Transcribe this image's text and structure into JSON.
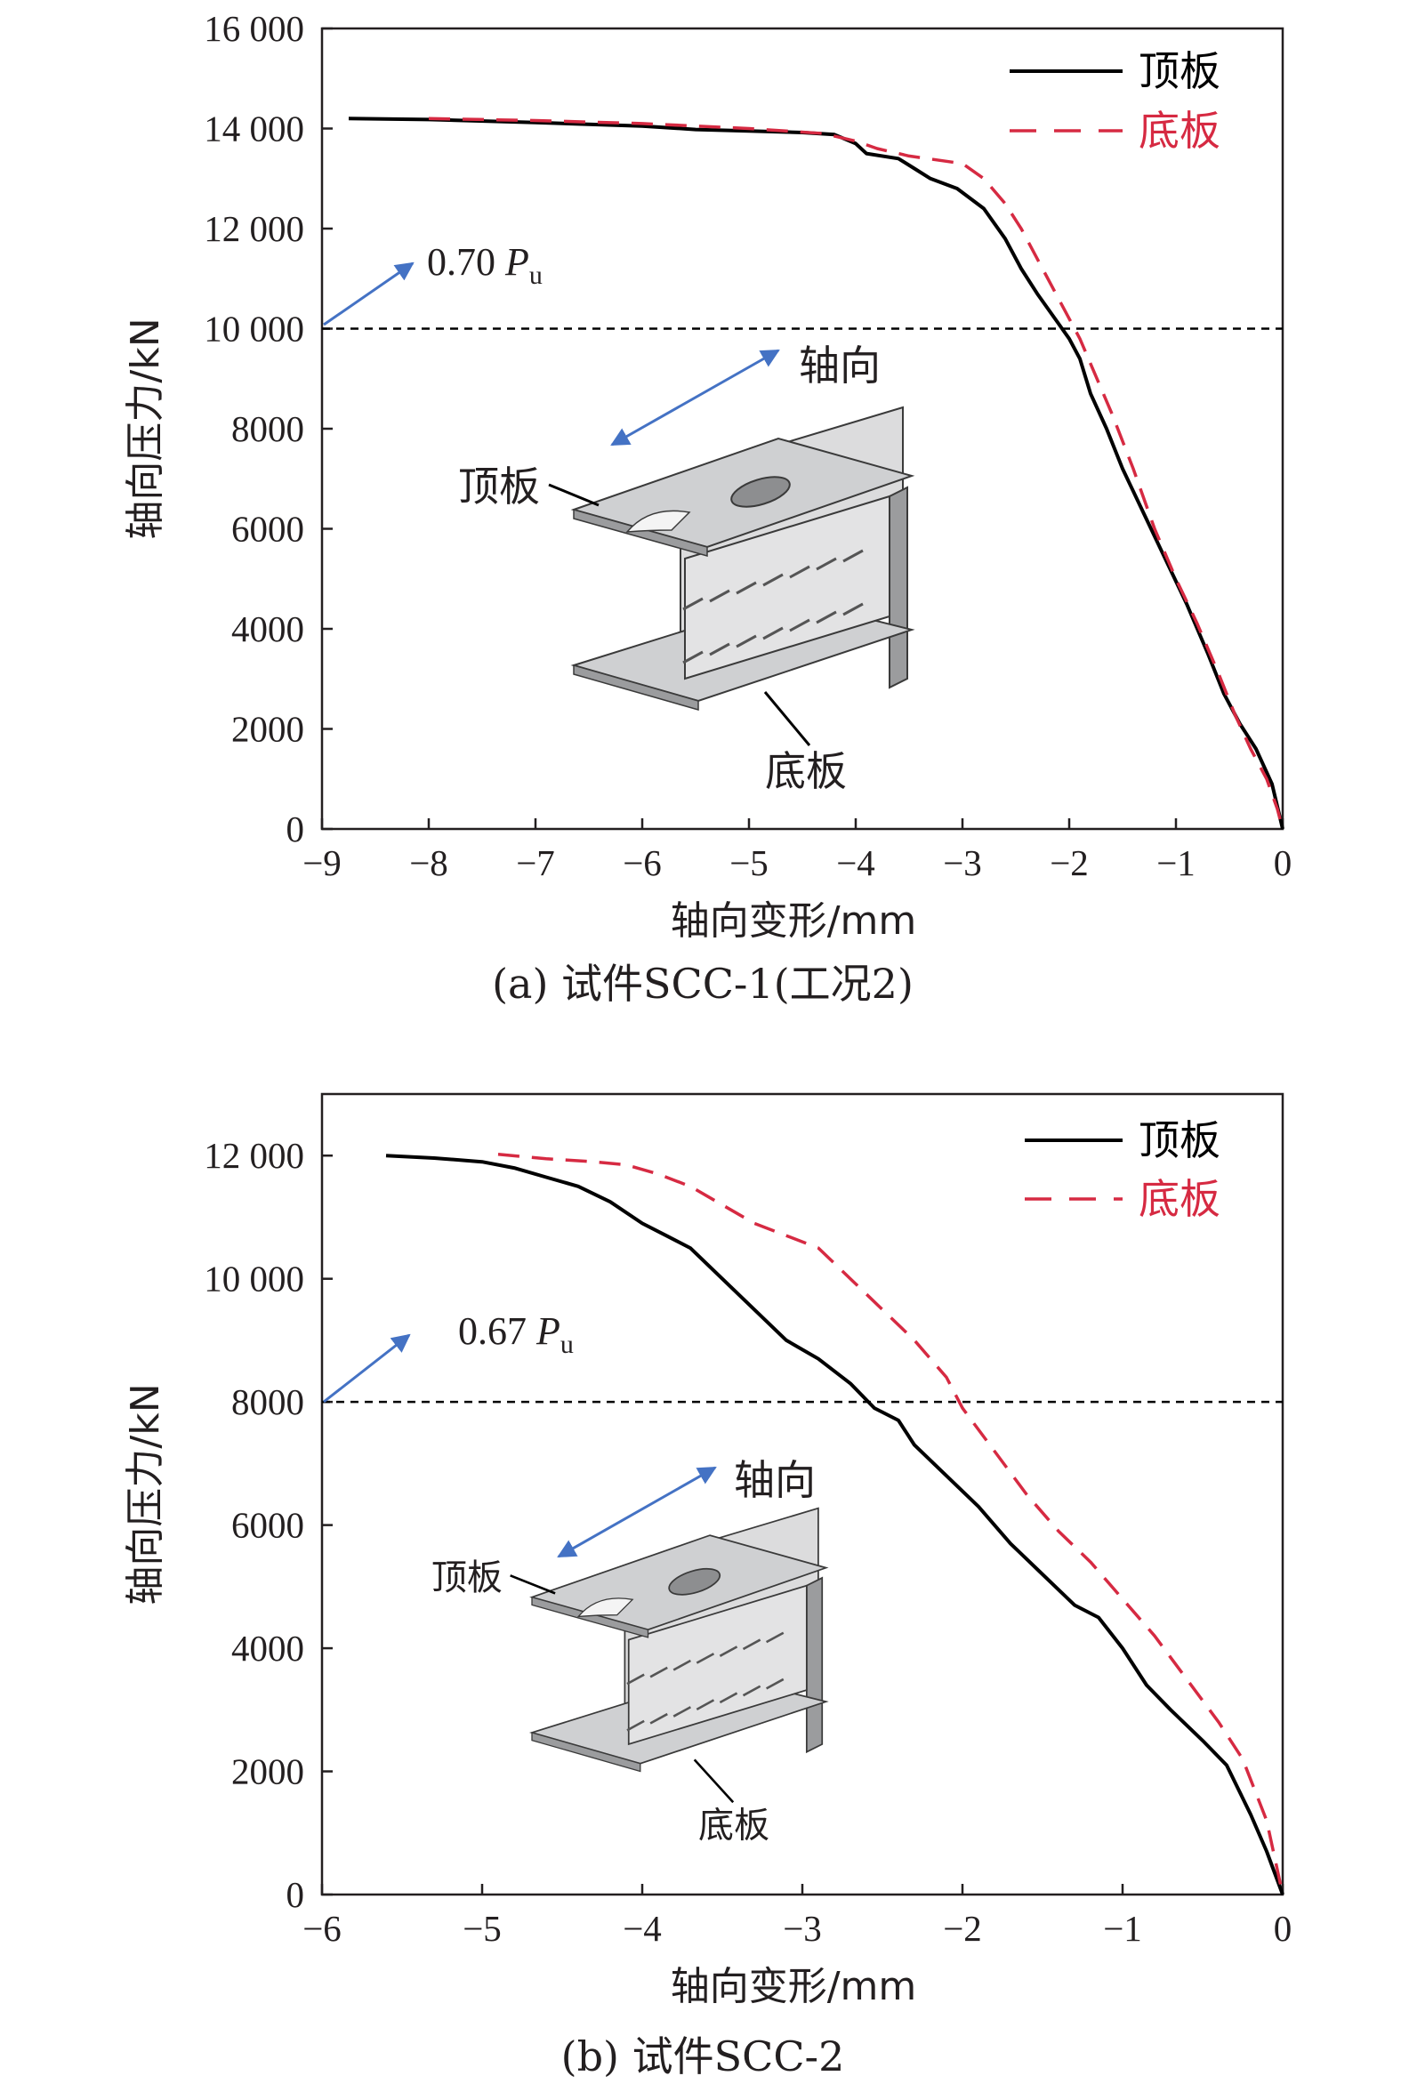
{
  "chart_data": [
    {
      "type": "line",
      "caption": "(a) 试件SCC-1(工况2)",
      "xlabel": "轴向变形/mm",
      "ylabel": "轴向压力/kN",
      "xlim": [
        -9,
        0
      ],
      "ylim": [
        0,
        16000
      ],
      "x_ticks": [
        -9,
        -8,
        -7,
        -6,
        -5,
        -4,
        -3,
        -2,
        -1,
        0
      ],
      "x_tick_labels": [
        "−9",
        "−8",
        "−7",
        "−6",
        "−5",
        "−4",
        "−3",
        "−2",
        "−1",
        "0"
      ],
      "y_ticks": [
        0,
        2000,
        4000,
        6000,
        8000,
        10000,
        12000,
        14000,
        16000
      ],
      "y_tick_labels": [
        "0",
        "2000",
        "4000",
        "6000",
        "8000",
        "10 000",
        "12 000",
        "14 000",
        "16 000"
      ],
      "legend_position": "top-right",
      "series": [
        {
          "name": "顶板",
          "color": "#000000",
          "style": "solid",
          "x": [
            -8.75,
            -8.0,
            -7.0,
            -6.0,
            -5.5,
            -5.0,
            -4.5,
            -4.2,
            -4.0,
            -3.9,
            -3.6,
            -3.45,
            -3.3,
            -3.05,
            -2.8,
            -2.6,
            -2.45,
            -2.3,
            -2.2,
            -2.1,
            -2.0,
            -1.9,
            -1.8,
            -1.65,
            -1.5,
            -1.3,
            -1.1,
            -0.9,
            -0.7,
            -0.55,
            -0.4,
            -0.25,
            -0.1,
            0.0
          ],
          "y": [
            14200,
            14180,
            14120,
            14050,
            13980,
            13950,
            13920,
            13880,
            13700,
            13500,
            13400,
            13200,
            13000,
            12800,
            12400,
            11800,
            11200,
            10700,
            10400,
            10100,
            9800,
            9400,
            8700,
            8000,
            7200,
            6300,
            5400,
            4500,
            3500,
            2700,
            2100,
            1600,
            900,
            0
          ]
        },
        {
          "name": "底板",
          "color": "#d62a42",
          "style": "dashed",
          "x": [
            -8.0,
            -7.0,
            -6.0,
            -5.0,
            -4.3,
            -4.0,
            -3.8,
            -3.5,
            -3.0,
            -2.8,
            -2.6,
            -2.45,
            -2.3,
            -2.1,
            -1.9,
            -1.8,
            -1.6,
            -1.4,
            -1.2,
            -1.0,
            -0.8,
            -0.6,
            -0.45,
            -0.3,
            -0.15,
            -0.05,
            0.0
          ],
          "y": [
            14200,
            14160,
            14100,
            14000,
            13900,
            13750,
            13600,
            13450,
            13300,
            13000,
            12500,
            12000,
            11400,
            10600,
            9800,
            9300,
            8300,
            7200,
            6000,
            5000,
            4100,
            3100,
            2300,
            1600,
            1000,
            400,
            0
          ]
        }
      ],
      "reference_line": {
        "y": 10000,
        "style": "dashed",
        "color": "#000000"
      },
      "annotations": {
        "load_ratio_value": "0.70",
        "load_symbol": "P",
        "load_subscript": "u",
        "axis_direction_label": "轴向",
        "top_plate_label": "顶板",
        "bottom_plate_label": "底板",
        "arrow_color": "#4472c4"
      }
    },
    {
      "type": "line",
      "caption": "(b) 试件SCC-2",
      "xlabel": "轴向变形/mm",
      "ylabel": "轴向压力/kN",
      "xlim": [
        -6,
        0
      ],
      "ylim": [
        0,
        13000
      ],
      "x_ticks": [
        -6,
        -5,
        -4,
        -3,
        -2,
        -1,
        0
      ],
      "x_tick_labels": [
        "−6",
        "−5",
        "−4",
        "−3",
        "−2",
        "−1",
        "0"
      ],
      "y_ticks": [
        0,
        2000,
        4000,
        6000,
        8000,
        10000,
        12000
      ],
      "y_tick_labels": [
        "0",
        "2000",
        "4000",
        "6000",
        "8000",
        "10 000",
        "12 000"
      ],
      "legend_position": "top-right",
      "series": [
        {
          "name": "顶板",
          "color": "#000000",
          "style": "solid",
          "x": [
            -5.6,
            -5.3,
            -5.0,
            -4.8,
            -4.6,
            -4.4,
            -4.2,
            -4.0,
            -3.85,
            -3.7,
            -3.5,
            -3.3,
            -3.1,
            -2.9,
            -2.7,
            -2.55,
            -2.4,
            -2.3,
            -2.1,
            -1.9,
            -1.7,
            -1.5,
            -1.3,
            -1.15,
            -1.0,
            -0.85,
            -0.7,
            -0.5,
            -0.35,
            -0.2,
            -0.1,
            0.0
          ],
          "y": [
            12000,
            11960,
            11900,
            11800,
            11650,
            11500,
            11250,
            10900,
            10700,
            10500,
            10000,
            9500,
            9000,
            8700,
            8300,
            7900,
            7700,
            7300,
            6800,
            6300,
            5700,
            5200,
            4700,
            4500,
            4000,
            3400,
            3000,
            2500,
            2100,
            1300,
            700,
            0
          ]
        },
        {
          "name": "底板",
          "color": "#d62a42",
          "style": "dashed",
          "x": [
            -4.9,
            -4.6,
            -4.3,
            -4.1,
            -3.9,
            -3.7,
            -3.5,
            -3.3,
            -3.1,
            -2.9,
            -2.7,
            -2.5,
            -2.3,
            -2.1,
            -2.0,
            -1.8,
            -1.6,
            -1.4,
            -1.2,
            -1.0,
            -0.8,
            -0.6,
            -0.4,
            -0.25,
            -0.1,
            0.0
          ],
          "y": [
            12020,
            11950,
            11900,
            11850,
            11700,
            11500,
            11200,
            10900,
            10700,
            10500,
            10000,
            9500,
            9000,
            8400,
            7900,
            7200,
            6500,
            5900,
            5400,
            4800,
            4200,
            3500,
            2800,
            2200,
            1200,
            0
          ]
        }
      ],
      "reference_line": {
        "y": 8000,
        "style": "dashed",
        "color": "#000000"
      },
      "annotations": {
        "load_ratio_value": "0.67",
        "load_symbol": "P",
        "load_subscript": "u",
        "axis_direction_label": "轴向",
        "top_plate_label": "顶板",
        "bottom_plate_label": "底板",
        "arrow_color": "#4472c4"
      }
    }
  ]
}
